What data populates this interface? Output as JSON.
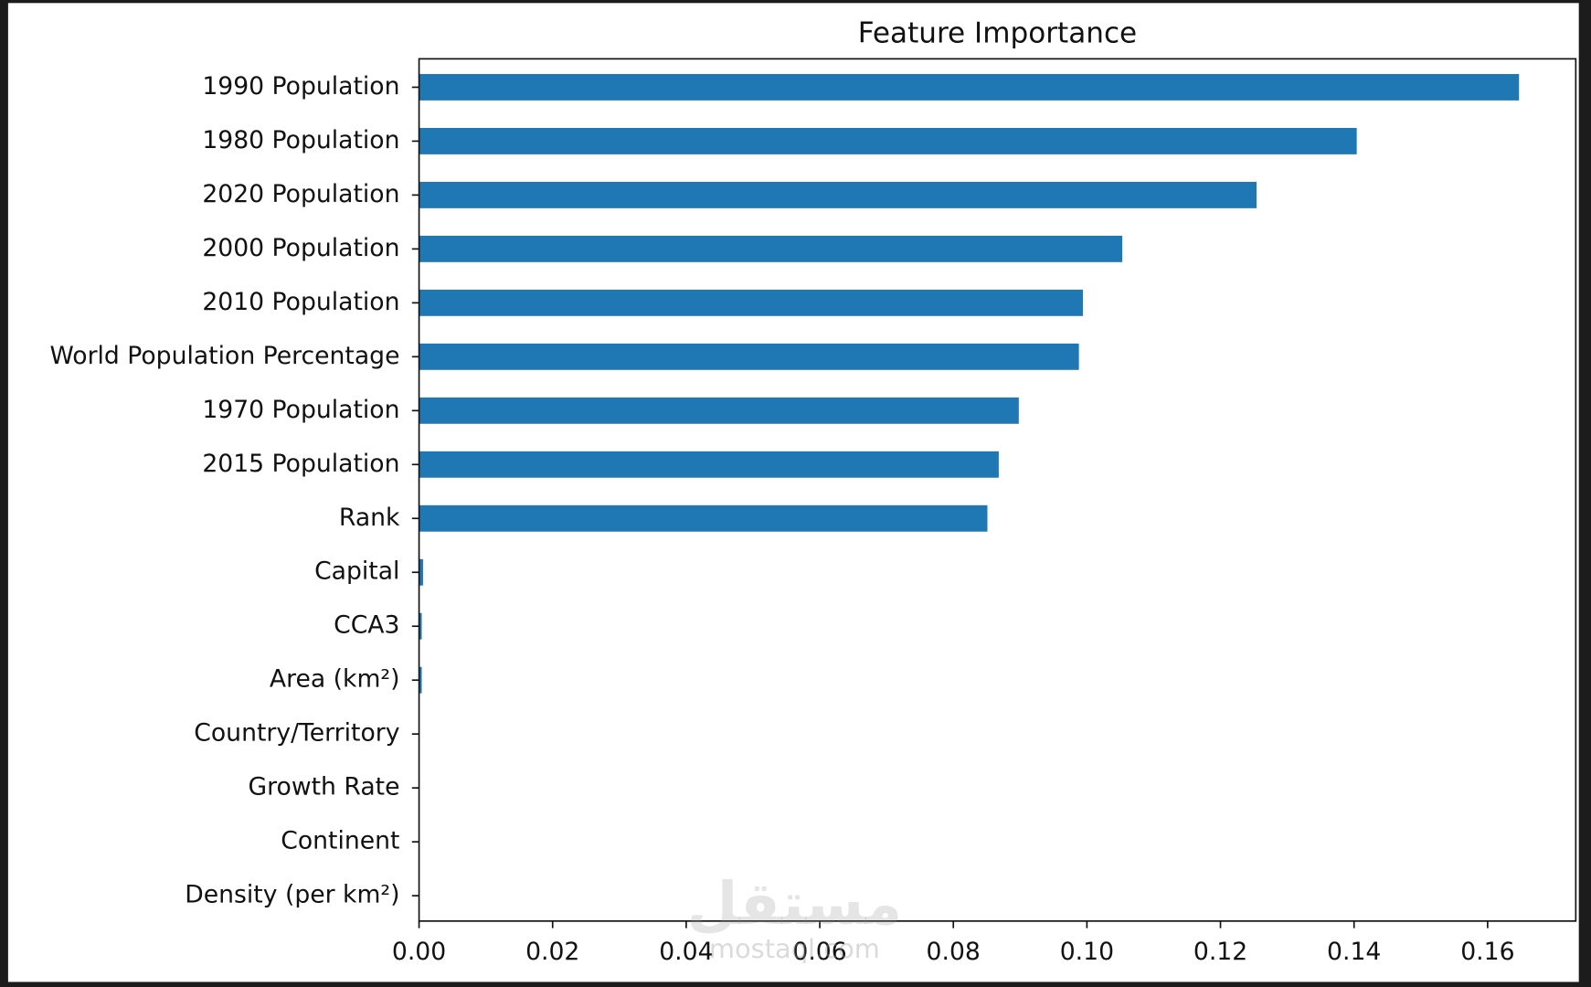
{
  "chart_data": {
    "type": "barh",
    "title": "Feature Importance",
    "categories": [
      "1990 Population",
      "1980 Population",
      "2020 Population",
      "2000 Population",
      "2010 Population",
      "World Population Percentage",
      "1970 Population",
      "2015 Population",
      "Rank",
      "Capital",
      "CCA3",
      "Area (km²)",
      "Country/Territory",
      "Growth Rate",
      "Continent",
      "Density (per km²)"
    ],
    "values": [
      0.1647,
      0.1404,
      0.1254,
      0.1053,
      0.0994,
      0.0988,
      0.0898,
      0.0868,
      0.0851,
      0.0006,
      0.0004,
      0.0004,
      0,
      0,
      0,
      0
    ],
    "color": "#1f77b4",
    "xlim": [
      0,
      0.1732
    ],
    "xticks": [
      {
        "value": 0,
        "label": "0.00"
      },
      {
        "value": 0.02,
        "label": "0.02"
      },
      {
        "value": 0.04,
        "label": "0.04"
      },
      {
        "value": 0.06,
        "label": "0.06"
      },
      {
        "value": 0.08,
        "label": "0.08"
      },
      {
        "value": 0.1,
        "label": "0.10"
      },
      {
        "value": 0.12,
        "label": "0.12"
      },
      {
        "value": 0.14,
        "label": "0.14"
      },
      {
        "value": 0.16,
        "label": "0.16"
      }
    ],
    "grid": false
  },
  "watermark": {
    "arabic": "مستقل",
    "latin": "mostaql.com"
  }
}
